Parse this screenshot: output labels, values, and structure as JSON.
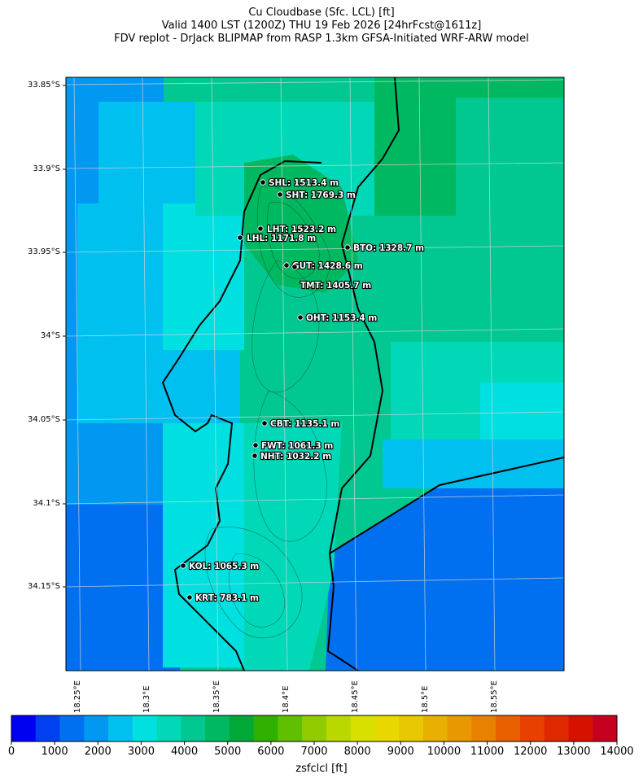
{
  "title": {
    "line1": "Cu Cloudbase (Sfc. LCL) [ft]",
    "line2": "Valid 1400 LST (1200Z) THU 19 Feb 2026 [24hrFcst@1611z]",
    "line3": "FDV replot - DrJack BLIPMAP from RASP 1.3km GFSA-Initiated WRF-ARW model"
  },
  "map": {
    "lat_labels": [
      "33.85°S",
      "33.9°S",
      "33.95°S",
      "34°S",
      "34.05°S",
      "34.1°S",
      "34.15°S"
    ],
    "lon_labels": [
      "18.25°E",
      "18.3°E",
      "18.35°E",
      "18.4°E",
      "18.45°E",
      "18.5°E",
      "18.55°E"
    ],
    "stations": [
      {
        "label": "SHL: 1513.4 m"
      },
      {
        "label": "SHT: 1769.3 m"
      },
      {
        "label": "LHT: 1523.2 m"
      },
      {
        "label": "LHL: 1171.8 m"
      },
      {
        "label": "BTO: 1328.7 m"
      },
      {
        "label": "GUT: 1428.6 m"
      },
      {
        "label": "TMT: 1405.7 m"
      },
      {
        "label": "OHT: 1153.4 m"
      },
      {
        "label": "CBT: 1135.1 m"
      },
      {
        "label": "FWT: 1061.3 m"
      },
      {
        "label": "NHT: 1032.2 m"
      },
      {
        "label": "KOL: 1065.3 m"
      },
      {
        "label": "KRT: 783.1 m"
      }
    ]
  },
  "colorbar": {
    "title": "zsfclcl [ft]",
    "tick_labels": [
      "0",
      "1000",
      "2000",
      "3000",
      "4000",
      "5000",
      "6000",
      "7000",
      "8000",
      "9000",
      "10000",
      "11000",
      "12000",
      "13000",
      "14000"
    ],
    "colors": [
      "#0000f0",
      "#0040f0",
      "#0070f0",
      "#0098f0",
      "#00c0f0",
      "#00e0e0",
      "#00d8b8",
      "#00c890",
      "#00b860",
      "#00a838",
      "#30b000",
      "#60c000",
      "#90cc00",
      "#b8d800",
      "#d8e000",
      "#e8d800",
      "#e8c800",
      "#e8b000",
      "#e89800",
      "#e88000",
      "#e86000",
      "#e84000",
      "#e02800",
      "#d81000",
      "#c80020"
    ]
  }
}
